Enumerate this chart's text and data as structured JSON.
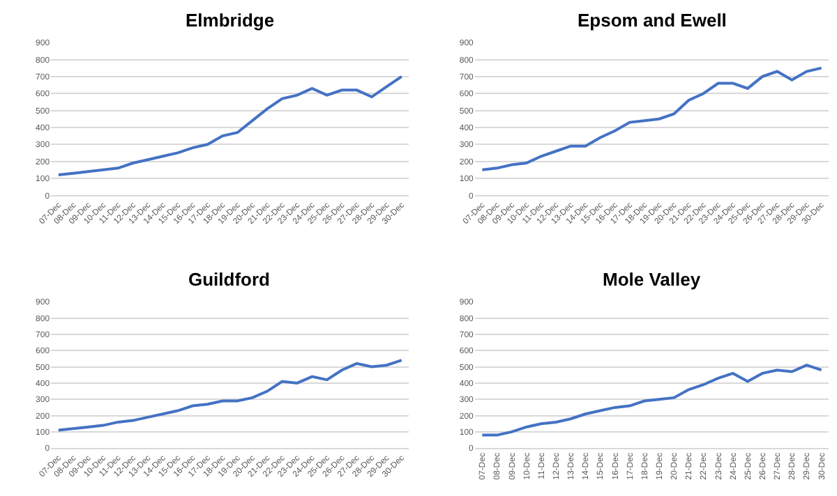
{
  "chart_data": [
    {
      "type": "line",
      "title": "Elmbridge",
      "categories": [
        "07-Dec",
        "08-Dec",
        "09-Dec",
        "10-Dec",
        "11-Dec",
        "12-Dec",
        "13-Dec",
        "14-Dec",
        "15-Dec",
        "16-Dec",
        "17-Dec",
        "18-Dec",
        "19-Dec",
        "20-Dec",
        "21-Dec",
        "22-Dec",
        "23-Dec",
        "24-Dec",
        "25-Dec",
        "26-Dec",
        "27-Dec",
        "28-Dec",
        "29-Dec",
        "30-Dec"
      ],
      "series": [
        {
          "color": "#4472c4",
          "values": [
            120,
            130,
            140,
            150,
            160,
            190,
            210,
            230,
            250,
            280,
            300,
            350,
            370,
            440,
            510,
            570,
            590,
            630,
            590,
            620,
            620,
            580,
            640,
            700
          ]
        }
      ],
      "ylim": [
        0,
        900
      ],
      "yticks": [
        0,
        100,
        200,
        300,
        400,
        500,
        600,
        700,
        800,
        900
      ],
      "grid": "y",
      "marker": "none",
      "line_style": "solid"
    },
    {
      "type": "line",
      "title": "Epsom and Ewell",
      "categories": [
        "07-Dec",
        "08-Dec",
        "09-Dec",
        "10-Dec",
        "11-Dec",
        "12-Dec",
        "13-Dec",
        "14-Dec",
        "15-Dec",
        "16-Dec",
        "17-Dec",
        "18-Dec",
        "19-Dec",
        "20-Dec",
        "21-Dec",
        "22-Dec",
        "23-Dec",
        "24-Dec",
        "25-Dec",
        "26-Dec",
        "27-Dec",
        "28-Dec",
        "29-Dec",
        "30-Dec"
      ],
      "series": [
        {
          "color": "#4472c4",
          "values": [
            150,
            160,
            180,
            190,
            230,
            260,
            290,
            290,
            340,
            380,
            430,
            440,
            450,
            480,
            560,
            600,
            660,
            660,
            630,
            700,
            730,
            680,
            730,
            750
          ]
        }
      ],
      "ylim": [
        0,
        900
      ],
      "yticks": [
        0,
        100,
        200,
        300,
        400,
        500,
        600,
        700,
        800,
        900
      ],
      "grid": "y",
      "marker": "none",
      "line_style": "solid"
    },
    {
      "type": "line",
      "title": "Guildford",
      "categories": [
        "07-Dec",
        "08-Dec",
        "09-Dec",
        "10-Dec",
        "11-Dec",
        "12-Dec",
        "13-Dec",
        "14-Dec",
        "15-Dec",
        "16-Dec",
        "17-Dec",
        "18-Dec",
        "19-Dec",
        "20-Dec",
        "21-Dec",
        "22-Dec",
        "23-Dec",
        "24-Dec",
        "25-Dec",
        "26-Dec",
        "27-Dec",
        "28-Dec",
        "29-Dec",
        "30-Dec"
      ],
      "series": [
        {
          "color": "#4472c4",
          "values": [
            110,
            120,
            130,
            140,
            160,
            170,
            190,
            210,
            230,
            260,
            270,
            290,
            290,
            310,
            350,
            410,
            400,
            440,
            420,
            480,
            520,
            500,
            510,
            540
          ]
        }
      ],
      "ylim": [
        0,
        900
      ],
      "yticks": [
        0,
        100,
        200,
        300,
        400,
        500,
        600,
        700,
        800,
        900
      ],
      "grid": "y",
      "marker": "none",
      "line_style": "solid"
    },
    {
      "type": "line",
      "title": "Mole Valley",
      "categories": [
        "07-Dec",
        "08-Dec",
        "09-Dec",
        "10-Dec",
        "11-Dec",
        "12-Dec",
        "13-Dec",
        "14-Dec",
        "15-Dec",
        "16-Dec",
        "17-Dec",
        "18-Dec",
        "19-Dec",
        "20-Dec",
        "21-Dec",
        "22-Dec",
        "23-Dec",
        "24-Dec",
        "25-Dec",
        "26-Dec",
        "27-Dec",
        "28-Dec",
        "29-Dec",
        "30-Dec"
      ],
      "series": [
        {
          "color": "#4472c4",
          "values": [
            80,
            80,
            100,
            130,
            150,
            160,
            180,
            210,
            230,
            250,
            260,
            290,
            300,
            310,
            360,
            390,
            430,
            460,
            410,
            460,
            480,
            470,
            510,
            480
          ]
        }
      ],
      "ylim": [
        0,
        900
      ],
      "yticks": [
        0,
        100,
        200,
        300,
        400,
        500,
        600,
        700,
        800,
        900
      ],
      "grid": "y",
      "marker": "none",
      "line_style": "solid"
    }
  ]
}
